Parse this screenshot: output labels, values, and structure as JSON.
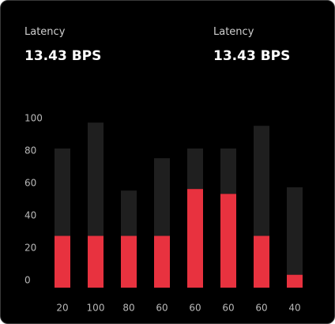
{
  "stats": [
    {
      "label": "Latency",
      "value": "13.43 BPS"
    },
    {
      "label": "Latency",
      "value": "13.43 BPS"
    }
  ],
  "chart_data": {
    "type": "stacked_bar",
    "categories": [
      "20",
      "100",
      "80",
      "60",
      "60",
      "60",
      "60",
      "40"
    ],
    "series": [
      {
        "color": "#e8323f",
        "values": [
          32,
          32,
          32,
          32,
          61,
          58,
          32,
          8
        ]
      },
      {
        "color": "#1f1f1f",
        "values": [
          54,
          70,
          28,
          48,
          25,
          28,
          68,
          54
        ]
      }
    ],
    "ylim": [
      0,
      105
    ],
    "yticks": [
      0,
      20,
      40,
      60,
      80,
      100
    ]
  }
}
